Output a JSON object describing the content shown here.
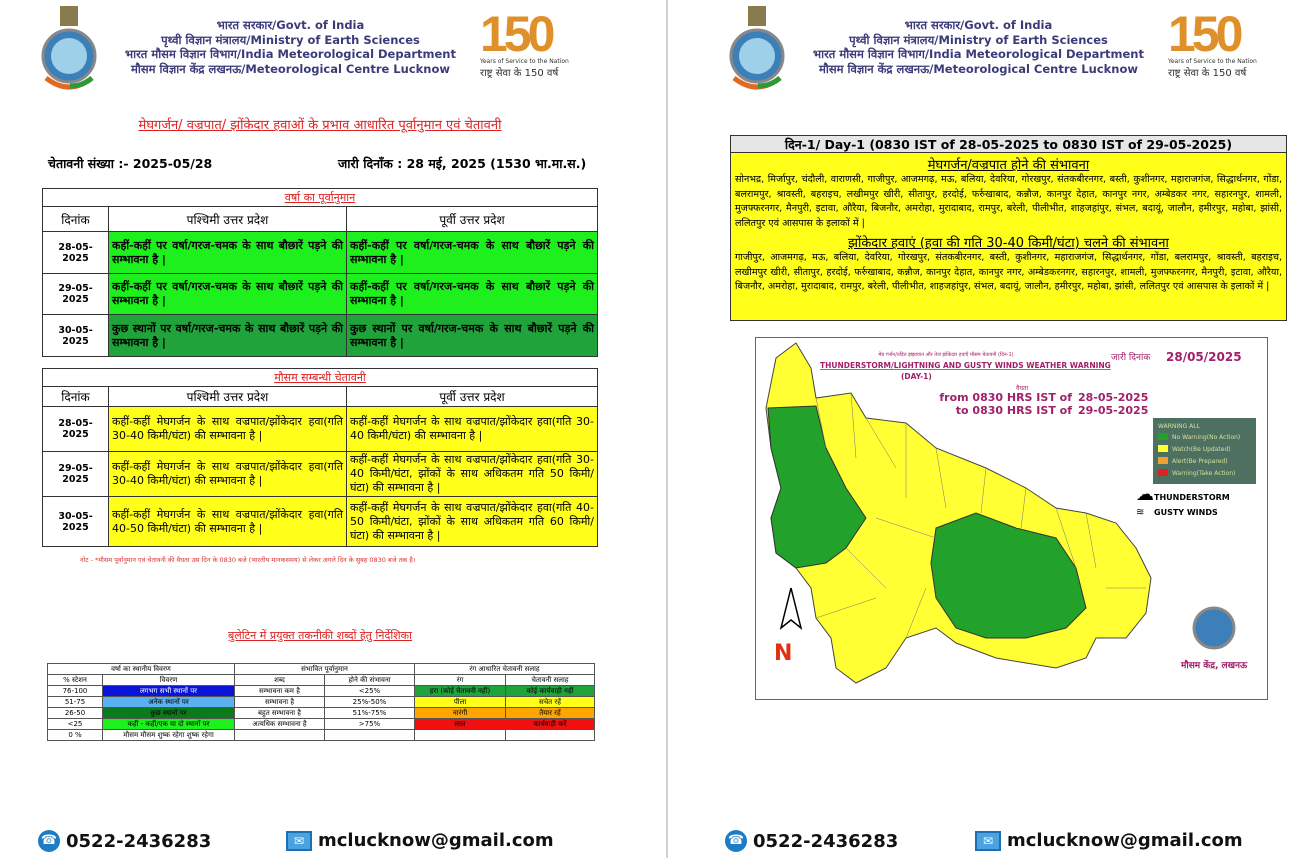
{
  "header": {
    "lines": [
      "भारत सरकार/Govt. of India",
      "पृथ्वी विज्ञान मंत्रालय/Ministry of Earth Sciences",
      "भारत मौसम विज्ञान विभाग/India Meteorological Department",
      "मौसम विज्ञान केंद्र लखनऊ/Meteorological Centre Lucknow"
    ],
    "logo_number": "150",
    "logo_tagline_en": "Years of Service to the Nation",
    "logo_tagline_hi": "राष्ट्र सेवा के 150 वर्ष"
  },
  "page1": {
    "title": "मेघगर्जन/ वज्रपात/ झोंकेदार हवाओं के प्रभाव आधारित पूर्वानुमान एवं चेतावनी",
    "warning_no": "चेतावनी संख्या :- 2025-05/28",
    "issue_date": "जारी दिनाँक : 28 मई, 2025 (1530 भा.मा.स.)",
    "rain_table": {
      "title": "वर्षा का पूर्वानुमान",
      "headers": [
        "दिनांक",
        "पश्चिमी उत्तर प्रदेश",
        "पूर्वी उत्तर प्रदेश"
      ],
      "rows": [
        {
          "date": "28-05-2025",
          "west": "कहीं-कहीं पर वर्षा/गरज-चमक के साथ बौछारें पड़ने की सम्भावना है |",
          "east": "कहीं-कहीं पर वर्षा/गरज-चमक के साथ बौछारें पड़ने की सम्भावना है |",
          "color": "#1ef01e"
        },
        {
          "date": "29-05-2025",
          "west": "कहीं-कहीं पर वर्षा/गरज-चमक के साथ बौछारें पड़ने की सम्भावना है |",
          "east": "कहीं-कहीं पर वर्षा/गरज-चमक के साथ बौछारें पड़ने की सम्भावना है |",
          "color": "#1ef01e"
        },
        {
          "date": "30-05-2025",
          "west": "कुछ स्थानों पर वर्षा/गरज-चमक के साथ बौछारें पड़ने की सम्भावना है |",
          "east": "कुछ स्थानों पर वर्षा/गरज-चमक के साथ बौछारें पड़ने की सम्भावना है |",
          "color": "#1fa33a"
        }
      ]
    },
    "warning_table": {
      "title": "मौसम सम्बन्धी चेतावनी",
      "headers": [
        "दिनांक",
        "पश्चिमी उत्तर प्रदेश",
        "पूर्वी उत्तर प्रदेश"
      ],
      "rows": [
        {
          "date": "28-05-2025",
          "west": "कहीं-कहीं मेघगर्जन के साथ वज्रपात/झोंकेदार हवा(गति 30-40 किमी/घंटा) की सम्भावना है |",
          "east": "कहीं-कहीं मेघगर्जन के साथ वज्रपात/झोंकेदार हवा(गति 30-40 किमी/घंटा) की सम्भावना है |"
        },
        {
          "date": "29-05-2025",
          "west": "कहीं-कहीं मेघगर्जन के साथ वज्रपात/झोंकेदार हवा(गति 30-40 किमी/घंटा) की सम्भावना है |",
          "east": "कहीं-कहीं मेघगर्जन के साथ वज्रपात/झोंकेदार हवा(गति 30-40 किमी/घंटा, झोंकों के साथ अधिकतम गति 50 किमी/घंटा) की सम्भावना है |"
        },
        {
          "date": "30-05-2025",
          "west": "कहीं-कहीं मेघगर्जन के साथ वज्रपात/झोंकेदार हवा(गति 40-50 किमी/घंटा) की सम्भावना है |",
          "east": "कहीं-कहीं मेघगर्जन के साथ वज्रपात/झोंकेदार हवा(गति 40-50 किमी/घंटा, झोंकों के साथ अधिकतम गति 60 किमी/घंटा) की सम्भावना है |"
        }
      ]
    },
    "note": "नोट - *मौसम पूर्वानुमान एवं चेतावनी की वैधता उस दिन के 0830 बजे (भारतीय मानकसमय) से लेकर अगले दिन के सुबह 0830 बजे तक है।",
    "glossary_title": "बुलेटिन में प्रयुक्त तकनीकी शब्दों हेतु निर्देशिका",
    "glossary": {
      "group_headers": [
        "वर्षा का स्थानीय विवरण",
        "संभावित पूर्वानुमान",
        "रंग आधारित चेतावनी सलाह"
      ],
      "headers": [
        "% स्टेशन",
        "विवरण",
        "शब्द",
        "होने की संभावना",
        "रंग",
        "चेतावनी सलाह"
      ],
      "rows": [
        {
          "pct": "76-100",
          "desc": "लगभग सभी स्थानों पर",
          "desc_color": "#0a14d8",
          "word": "सम्भावना कम है",
          "prob": "<25%",
          "color": "हरा (कोई चेतावनी नहीं)",
          "advice": "कोई कार्यवाही नहीं",
          "warn_color": "#1fa33a"
        },
        {
          "pct": "51-75",
          "desc": "अनेक स्थानों पर",
          "desc_color": "#5ab0f0",
          "word": "सम्भावना है",
          "prob": "25%-50%",
          "color": "पीला",
          "advice": "सचेत रहें",
          "warn_color": "#ffff1a"
        },
        {
          "pct": "26-50",
          "desc": "कुछ स्थानों पर",
          "desc_color": "#0a7a1a",
          "word": "बहुत सम्भावना है",
          "prob": "51%-75%",
          "color": "नारंगी",
          "advice": "तैयार रहें",
          "warn_color": "#ffa500"
        },
        {
          "pct": "<25",
          "desc": "कहीं - कहीं/एक या दो स्थानों पर",
          "desc_color": "#1ef01e",
          "word": "अत्यधिक सम्भावना है",
          "prob": ">75%",
          "color": "लाल",
          "advice": "कार्यवाही करें",
          "warn_color": "#f01010"
        },
        {
          "pct": "0 %",
          "desc": "मौसम मौसम शुष्क रहेगा शुष्क रहेगा",
          "desc_color": "#ffffff",
          "word": "",
          "prob": "",
          "color": "",
          "advice": "",
          "warn_color": "#ffffff"
        }
      ]
    }
  },
  "page2": {
    "day_header": "दिन-1/ Day-1 (0830 IST of 28-05-2025 to 0830 IST of 29-05-2025)",
    "thunder_title": "मेघगर्जन/वज्रपात होने की संभावना",
    "thunder_districts": "सोनभद्र, मिर्जापुर, चंदौली, वाराणसी, गाजीपुर, आजमगढ़, मऊ, बलिया, देवरिया, गोरखपुर, संतकबीरनगर, बस्ती, कुशीनगर, महाराजगंज, सिद्धार्थनगर, गोंडा, बलरामपुर, श्रावस्ती, बहराइच, लखीमपुर खीरी, सीतापुर, हरदोई, फर्रुखाबाद, कन्नौज, कानपुर देहात, कानपुर नगर, अम्बेडकर नगर, सहारनपुर, शामली, मुजफ्फरनगर, मैनपुरी, इटावा, औरैया, बिजनौर, अमरोहा, मुरादाबाद, रामपुर, बरेली, पीलीभीत, शाहजहांपुर, संभल, बदायूं, जालौन, हमीरपुर, महोबा, झांसी, ललितपुर एवं आसपास के इलाकों में |",
    "wind_title": "झोंकेदार हवाएं (हवा की गति 30-40 किमी/घंटा) चलने की संभावना",
    "wind_districts": "गाजीपुर, आजमगढ़, मऊ, बलिया, देवरिया, गोरखपुर, संतकबीरनगर, बस्ती, कुशीनगर, महाराजगंज, सिद्धार्थनगर, गोंडा, बलरामपुर, श्रावस्ती, बहराइच, लखीमपुर खीरी, सीतापुर, हरदोई, फर्रुखाबाद, कन्नौज, कानपुर देहात, कानपुर नगर, अम्बेडकरनगर, सहारनपुर, शामली, मुजफ्फरनगर, मैनपुरी, इटावा, औरैया, बिजनौर, अमरोहा, मुरादाबाद, रामपुर, बरेली, पीलीभीत, शाहजहांपुर, संभल, बदायूं, जालौन, हमीरपुर, महोबा, झांसी, ललितपुर एवं आसपास के इलाकों में |",
    "map": {
      "title_hi": "मेघ गर्जन/तड़ित झंझावात और तेज झोंकेदार हवाएँ मौसम चेतावनी (दिन-1)",
      "title_en": "THUNDERSTORM/LIGHTNING AND GUSTY WINDS WEATHER WARNING",
      "day": "(DAY-1)",
      "validity_label": "वैधता",
      "from": "from 0830 HRS IST of",
      "from_date": "28-05-2025",
      "to": "to 0830 HRS IST of",
      "to_date": "29-05-2025",
      "issue_label": "जारी दिनांक",
      "issue_date": "28/05/2025",
      "legend_title": "WARNING ALL",
      "legend": [
        {
          "label": "No Warning(No Action)",
          "color": "#22a22a"
        },
        {
          "label": "Watch(Be Updated)",
          "color": "#ffff33"
        },
        {
          "label": "Alert(Be Prepared)",
          "color": "#f0a030"
        },
        {
          "label": "Warning(Take Action)",
          "color": "#e02020"
        }
      ],
      "thunderstorm_label": "THUNDERSTORM",
      "gusty_label": "GUSTY WINDS",
      "north_label": "N",
      "centre_label": "मौसम केंद्र, लखनऊ"
    }
  },
  "footer": {
    "phone": "0522-2436283",
    "email": "mclucknow@gmail.com"
  }
}
